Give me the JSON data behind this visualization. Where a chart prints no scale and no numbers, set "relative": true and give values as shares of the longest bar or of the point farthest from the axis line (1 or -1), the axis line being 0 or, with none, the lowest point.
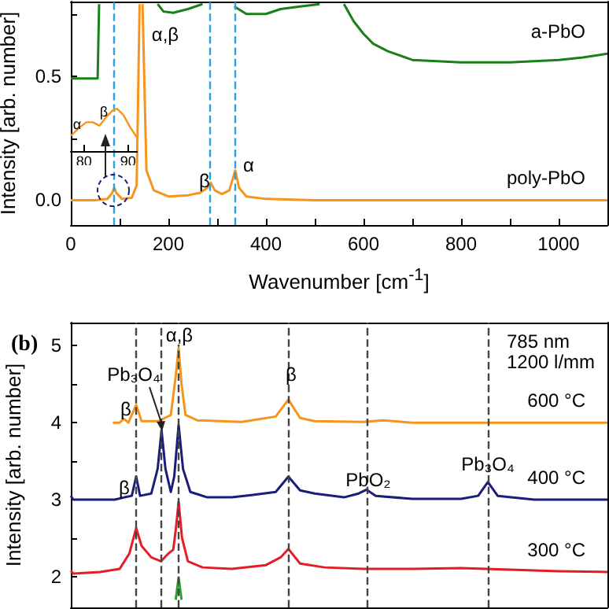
{
  "chart_data": [
    {
      "type": "line",
      "xlabel": "Wavenumber [cm$^{-1}$]",
      "ylabel": "Intensity [arb. number]",
      "xlim": [
        0,
        1100
      ],
      "ylim": [
        -0.1,
        0.8
      ],
      "xticks": [
        0,
        {
          "value": 100,
          "label": null
        },
        200,
        {
          "value": 300,
          "label": null
        },
        400,
        {
          "value": 500,
          "label": null
        },
        600,
        {
          "value": 700,
          "label": null
        },
        800,
        {
          "value": 900,
          "label": null
        },
        1000
      ],
      "yticks": [
        {
          "value": 0,
          "label": "0.0"
        },
        {
          "value": 0.25,
          "label": null
        },
        {
          "value": 0.5,
          "label": "0.5"
        },
        {
          "value": 0.75,
          "label": null
        }
      ],
      "series": [
        {
          "name": "a-PbO",
          "color": "#1a7f1a",
          "x": [
            0,
            30,
            55,
            58,
            60,
            175,
            178,
            190,
            210,
            240,
            270,
            290,
            320,
            335,
            360,
            400,
            430,
            470,
            510,
            530,
            555,
            560,
            580,
            600,
            620,
            650,
            700,
            800,
            900,
            1000,
            1050,
            1100
          ],
          "values": [
            0.49,
            0.49,
            0.49,
            0.79,
            null,
            null,
            0.79,
            0.76,
            0.755,
            0.77,
            0.79,
            null,
            null,
            0.78,
            0.75,
            0.75,
            0.77,
            0.78,
            0.79,
            null,
            null,
            0.79,
            0.72,
            0.67,
            0.63,
            0.6,
            0.565,
            0.555,
            0.555,
            0.565,
            0.575,
            0.59
          ]
        },
        {
          "name": "poly-PbO",
          "color": "#f7941d",
          "x": [
            0,
            20,
            50,
            75,
            85,
            89,
            93,
            105,
            125,
            135,
            141,
            145,
            147,
            155,
            170,
            200,
            240,
            265,
            280,
            287,
            295,
            310,
            325,
            337,
            345,
            360,
            400,
            500,
            700,
            900,
            1100
          ],
          "values": [
            0,
            0,
            0,
            0.005,
            0.03,
            0.05,
            0.03,
            0.005,
            0.01,
            0.06,
            0.79,
            null,
            0.79,
            0.12,
            0.04,
            0.015,
            0.02,
            0.03,
            0.05,
            0.07,
            0.04,
            0.025,
            0.04,
            0.12,
            0.05,
            0.015,
            0.005,
            0,
            0,
            0,
            0
          ]
        }
      ],
      "ref_lines": [
        {
          "axis": "x",
          "value": 89,
          "color": "#29a3d9",
          "line_style": "dashed"
        },
        {
          "axis": "x",
          "value": 286,
          "color": "#29a3d9",
          "line_style": "dashed"
        },
        {
          "axis": "x",
          "value": 337,
          "color": "#29a3d9",
          "line_style": "dashed"
        }
      ],
      "annotations": [
        "α,β",
        "β",
        "α"
      ]
    },
    {
      "type": "line",
      "relative": true,
      "xlim": [
        77,
        92
      ],
      "xticks": [
        80,
        90
      ],
      "tick_labels": "x",
      "series": [
        {
          "color": "#f7941d",
          "x": [
            77,
            79,
            80.5,
            82,
            83.5,
            85,
            86.5,
            87.5,
            89,
            90.5,
            92
          ],
          "values": [
            0.36,
            0.56,
            0.68,
            0.68,
            0.6,
            0.8,
            0.96,
            1,
            0.84,
            0.56,
            0.32
          ]
        }
      ],
      "annotations": [
        "α",
        "β"
      ]
    },
    {
      "type": "line",
      "title": "(b)",
      "ylabel": "Intensity [arb. number]",
      "xlim": [
        0,
        1100
      ],
      "ylim": [
        1.6,
        5.3
      ],
      "tick_labels": "y",
      "yticks": [
        2,
        {
          "value": 2.5,
          "label": null
        },
        3,
        {
          "value": 3.5,
          "label": null
        },
        4,
        {
          "value": 4.5,
          "label": null
        },
        5
      ],
      "series": [
        {
          "name": "600 °C",
          "color": "#f7941d",
          "x": [
            86,
            100,
            109,
            118,
            134,
            145,
            180,
            205,
            215,
            221,
            227,
            235,
            260,
            350,
            420,
            446,
            470,
            500,
            600,
            640,
            700,
            1100
          ],
          "values": [
            4.0,
            4.0,
            4.05,
            4.0,
            4.23,
            4.02,
            4.02,
            4.1,
            4.6,
            4.97,
            4.5,
            4.1,
            4.03,
            4.01,
            4.08,
            4.3,
            4.06,
            4.02,
            4.01,
            4.03,
            4.0,
            4.0
          ]
        },
        {
          "name": "400 °C",
          "color": "#1c1c7a",
          "x": [
            0,
            5,
            90,
            110,
            125,
            134,
            142,
            165,
            178,
            186,
            194,
            205,
            212,
            221,
            230,
            245,
            280,
            330,
            370,
            420,
            446,
            470,
            500,
            560,
            590,
            606,
            625,
            700,
            800,
            835,
            855,
            875,
            950,
            1100
          ],
          "values": [
            3.05,
            3.0,
            3.0,
            3.03,
            3.05,
            3.3,
            3.05,
            3.08,
            3.4,
            3.9,
            3.4,
            3.1,
            3.3,
            3.97,
            3.4,
            3.1,
            3.03,
            3.03,
            3.06,
            3.1,
            3.3,
            3.12,
            3.08,
            3.03,
            3.08,
            3.13,
            3.05,
            3.01,
            3.01,
            3.05,
            3.23,
            3.05,
            3.0,
            3.0
          ]
        },
        {
          "name": "300 °C",
          "color": "#e41e26",
          "x": [
            0,
            5,
            60,
            100,
            120,
            134,
            145,
            165,
            185,
            200,
            210,
            215,
            221,
            228,
            240,
            270,
            330,
            400,
            430,
            446,
            470,
            520,
            600,
            700,
            800,
            900,
            1000,
            1100
          ],
          "values": [
            2.08,
            2.04,
            2.06,
            2.1,
            2.3,
            2.63,
            2.4,
            2.25,
            2.2,
            2.3,
            2.35,
            2.6,
            2.97,
            2.5,
            2.2,
            2.12,
            2.1,
            2.15,
            2.25,
            2.36,
            2.17,
            2.12,
            2.1,
            2.1,
            2.11,
            2.09,
            2.07,
            2.06
          ]
        },
        {
          "color": "#2ca02c",
          "x": [
            215,
            221,
            227
          ],
          "values": [
            1.7,
            1.99,
            1.7
          ]
        }
      ],
      "ref_lines": [
        {
          "axis": "x",
          "value": 134,
          "color": "#444444",
          "line_style": "dashed"
        },
        {
          "axis": "x",
          "value": 186,
          "color": "#444444",
          "line_style": "dashed"
        },
        {
          "axis": "x",
          "value": 221,
          "color": "#444444",
          "line_style": "dashed"
        },
        {
          "axis": "x",
          "value": 446,
          "color": "#444444",
          "line_style": "dashed"
        },
        {
          "axis": "x",
          "value": 606,
          "color": "#444444",
          "line_style": "dashed"
        },
        {
          "axis": "x",
          "value": 855,
          "color": "#444444",
          "line_style": "dashed"
        }
      ],
      "annotations": [
        "α,β",
        "β",
        "Pb₃O₄",
        "β",
        "β",
        "PbO₂",
        "Pb₃O₄",
        "785 nm",
        "1200 l/mm"
      ]
    }
  ]
}
